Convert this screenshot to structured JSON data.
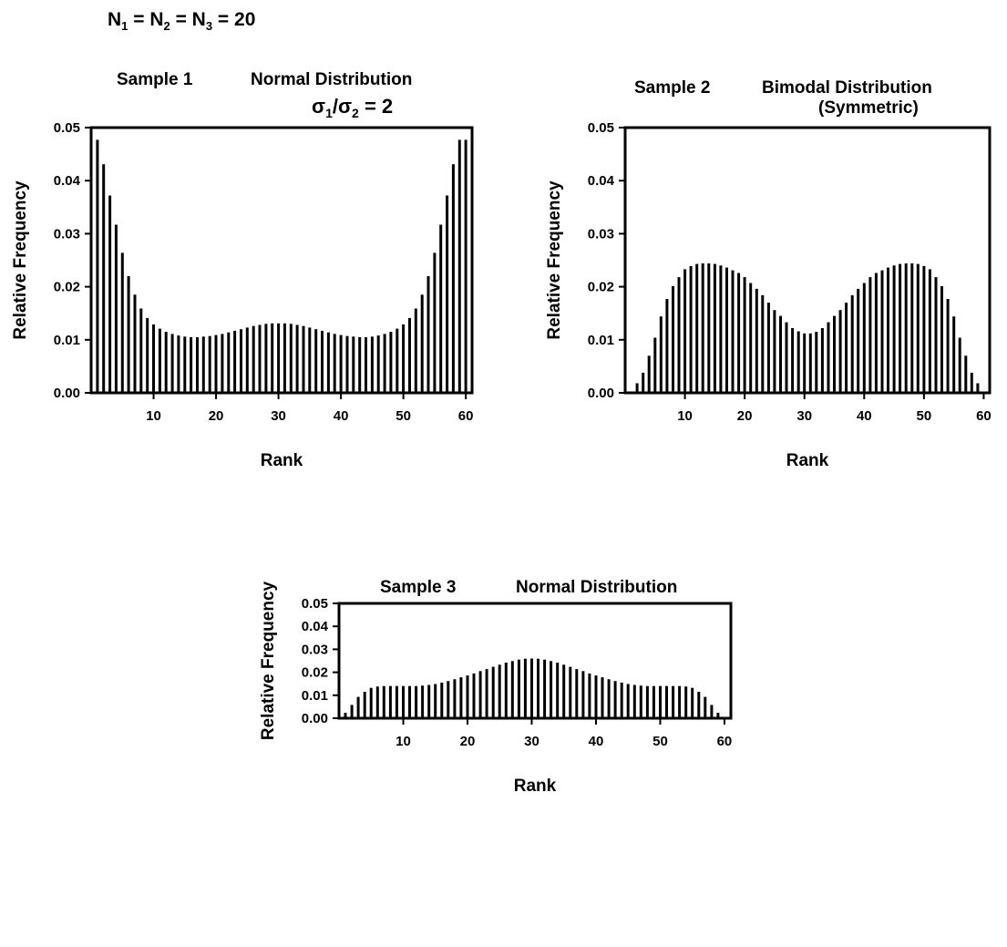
{
  "heading": {
    "n1": "N",
    "n1_sub": "1",
    "eq1": " = N",
    "n2_sub": "2",
    "eq2": " = N",
    "n3_sub": "3",
    "eq3": " = 20"
  },
  "chart_data": [
    {
      "type": "bar",
      "title_left": "Sample 1",
      "title_right": "Normal Distribution",
      "annotation": {
        "sigma": "σ",
        "s1": "1",
        "slash": "/",
        "s2": "2",
        "value": " = 2"
      },
      "xlabel": "Rank",
      "ylabel": "Relative Frequency",
      "xlim": [
        0,
        61
      ],
      "ylim": [
        0,
        0.05
      ],
      "xticks": [
        10,
        20,
        30,
        40,
        50,
        60
      ],
      "yticks": [
        "0.00",
        "0.01",
        "0.02",
        "0.03",
        "0.04",
        "0.05"
      ],
      "x": [
        1,
        2,
        3,
        4,
        5,
        6,
        7,
        8,
        9,
        10,
        11,
        12,
        13,
        14,
        15,
        16,
        17,
        18,
        19,
        20,
        21,
        22,
        23,
        24,
        25,
        26,
        27,
        28,
        29,
        30,
        31,
        32,
        33,
        34,
        35,
        36,
        37,
        38,
        39,
        40,
        41,
        42,
        43,
        44,
        45,
        46,
        47,
        48,
        49,
        50,
        51,
        52,
        53,
        54,
        55,
        56,
        57,
        58,
        59,
        60
      ],
      "values": [
        0.0477,
        0.0431,
        0.0372,
        0.0317,
        0.0264,
        0.022,
        0.0185,
        0.0159,
        0.0141,
        0.0129,
        0.0121,
        0.0115,
        0.0111,
        0.0108,
        0.0106,
        0.0105,
        0.0105,
        0.0106,
        0.0107,
        0.0109,
        0.0111,
        0.0114,
        0.0117,
        0.012,
        0.0123,
        0.0126,
        0.0128,
        0.013,
        0.0131,
        0.0131,
        0.0131,
        0.013,
        0.0128,
        0.0126,
        0.0123,
        0.012,
        0.0117,
        0.0114,
        0.0111,
        0.0109,
        0.0107,
        0.0106,
        0.0105,
        0.0105,
        0.0106,
        0.0108,
        0.0111,
        0.0115,
        0.0121,
        0.0129,
        0.0141,
        0.0159,
        0.0185,
        0.022,
        0.0264,
        0.0317,
        0.0372,
        0.0431,
        0.0477,
        0.0477
      ],
      "grid": false
    },
    {
      "type": "bar",
      "title_left": "Sample 2",
      "title_right": "Bimodal Distribution",
      "title_right_line2": "(Symmetric)",
      "xlabel": "Rank",
      "ylabel": "Relative Frequency",
      "xlim": [
        0,
        61
      ],
      "ylim": [
        0,
        0.05
      ],
      "xticks": [
        10,
        20,
        30,
        40,
        50,
        60
      ],
      "yticks": [
        "0.00",
        "0.01",
        "0.02",
        "0.03",
        "0.04",
        "0.05"
      ],
      "x": [
        1,
        2,
        3,
        4,
        5,
        6,
        7,
        8,
        9,
        10,
        11,
        12,
        13,
        14,
        15,
        16,
        17,
        18,
        19,
        20,
        21,
        22,
        23,
        24,
        25,
        26,
        27,
        28,
        29,
        30,
        31,
        32,
        33,
        34,
        35,
        36,
        37,
        38,
        39,
        40,
        41,
        42,
        43,
        44,
        45,
        46,
        47,
        48,
        49,
        50,
        51,
        52,
        53,
        54,
        55,
        56,
        57,
        58,
        59,
        60
      ],
      "values": [
        0.0,
        0.0018,
        0.0038,
        0.007,
        0.0104,
        0.0144,
        0.0177,
        0.0201,
        0.0218,
        0.0233,
        0.0239,
        0.0243,
        0.0244,
        0.0244,
        0.0243,
        0.024,
        0.0236,
        0.0231,
        0.0226,
        0.0218,
        0.0207,
        0.0196,
        0.0184,
        0.017,
        0.0156,
        0.0145,
        0.0133,
        0.0122,
        0.0116,
        0.0112,
        0.0112,
        0.0115,
        0.0122,
        0.0133,
        0.0145,
        0.0156,
        0.017,
        0.0184,
        0.0196,
        0.0207,
        0.0218,
        0.0226,
        0.0231,
        0.0236,
        0.024,
        0.0243,
        0.0244,
        0.0244,
        0.0243,
        0.0239,
        0.0233,
        0.0218,
        0.0201,
        0.0177,
        0.0144,
        0.0104,
        0.007,
        0.0038,
        0.0018,
        0.0
      ],
      "grid": false
    },
    {
      "type": "bar",
      "title_left": "Sample 3",
      "title_right": "Normal Distribution",
      "xlabel": "Rank",
      "ylabel": "Relative Frequency",
      "xlim": [
        0,
        61
      ],
      "ylim": [
        0,
        0.05
      ],
      "xticks": [
        10,
        20,
        30,
        40,
        50,
        60
      ],
      "yticks": [
        "0.00",
        "0.01",
        "0.02",
        "0.03",
        "0.04",
        "0.05"
      ],
      "x": [
        1,
        2,
        3,
        4,
        5,
        6,
        7,
        8,
        9,
        10,
        11,
        12,
        13,
        14,
        15,
        16,
        17,
        18,
        19,
        20,
        21,
        22,
        23,
        24,
        25,
        26,
        27,
        28,
        29,
        30,
        31,
        32,
        33,
        34,
        35,
        36,
        37,
        38,
        39,
        40,
        41,
        42,
        43,
        44,
        45,
        46,
        47,
        48,
        49,
        50,
        51,
        52,
        53,
        54,
        55,
        56,
        57,
        58,
        59,
        60
      ],
      "values": [
        0.0024,
        0.0058,
        0.0093,
        0.0115,
        0.0132,
        0.0138,
        0.014,
        0.014,
        0.014,
        0.014,
        0.014,
        0.014,
        0.0142,
        0.0145,
        0.0149,
        0.0155,
        0.0162,
        0.017,
        0.0178,
        0.0186,
        0.0195,
        0.0205,
        0.0214,
        0.0224,
        0.0233,
        0.0242,
        0.0249,
        0.0255,
        0.0259,
        0.026,
        0.0259,
        0.0255,
        0.0249,
        0.0242,
        0.0233,
        0.0224,
        0.0214,
        0.0205,
        0.0195,
        0.0186,
        0.0178,
        0.017,
        0.0162,
        0.0155,
        0.0149,
        0.0145,
        0.0142,
        0.014,
        0.014,
        0.014,
        0.014,
        0.014,
        0.014,
        0.0138,
        0.0132,
        0.0115,
        0.0093,
        0.0058,
        0.0024,
        0.0
      ],
      "grid": false
    }
  ]
}
